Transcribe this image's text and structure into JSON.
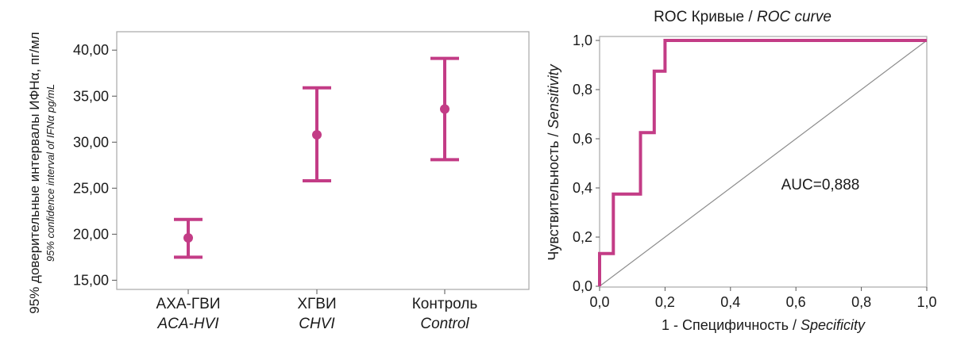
{
  "colors": {
    "accent": "#c33c86",
    "frame": "#a8a8a8",
    "diagonal": "#8c8c8c"
  },
  "chart_data": [
    {
      "type": "errorbar",
      "ylabel_main": "95% доверительные интервалы ИФНα, пг/мл",
      "ylabel_sub": "95% confidence interval of IFNα pg/mL",
      "ylim": [
        14,
        42
      ],
      "yticks": [
        "15,00",
        "20,00",
        "25,00",
        "30,00",
        "35,00",
        "40,00"
      ],
      "ytick_values": [
        15,
        20,
        25,
        30,
        35,
        40
      ],
      "categories": [
        {
          "label_ru": "АХА-ГВИ",
          "label_en": "ACA-HVI"
        },
        {
          "label_ru": "ХГВИ",
          "label_en": "CHVI"
        },
        {
          "label_ru": "Контроль",
          "label_en": "Control"
        }
      ],
      "points": [
        {
          "mean": 19.6,
          "lower": 17.5,
          "upper": 21.6
        },
        {
          "mean": 30.8,
          "lower": 25.8,
          "upper": 35.9
        },
        {
          "mean": 33.6,
          "lower": 28.1,
          "upper": 39.1
        }
      ]
    },
    {
      "type": "line",
      "title_ru": "ROC Кривые / ",
      "title_en": "ROC curve",
      "xlabel_ru": "1 - Специфичность / ",
      "xlabel_en": "Specificity",
      "ylabel_ru": "Чувствительность / ",
      "ylabel_en": "Sensitivity",
      "xlim": [
        0,
        1
      ],
      "ylim": [
        0,
        1
      ],
      "xticks": [
        "0,0",
        "0,2",
        "0,4",
        "0,6",
        "0,8",
        "1,0"
      ],
      "yticks": [
        "0,0",
        "0,2",
        "0,4",
        "0,6",
        "0,8",
        "1,0"
      ],
      "tick_values": [
        0,
        0.2,
        0.4,
        0.6,
        0.8,
        1.0
      ],
      "annotation": "AUC=0,888",
      "series": [
        {
          "x": [
            0,
            0,
            0.042,
            0.042,
            0.125,
            0.125,
            0.167,
            0.167,
            0.2,
            0.2,
            1.0
          ],
          "y": [
            0,
            0.133,
            0.133,
            0.375,
            0.375,
            0.625,
            0.625,
            0.875,
            0.875,
            1.0,
            1.0
          ]
        }
      ],
      "reference_line": {
        "x": [
          0,
          1
        ],
        "y": [
          0,
          1
        ]
      }
    }
  ]
}
